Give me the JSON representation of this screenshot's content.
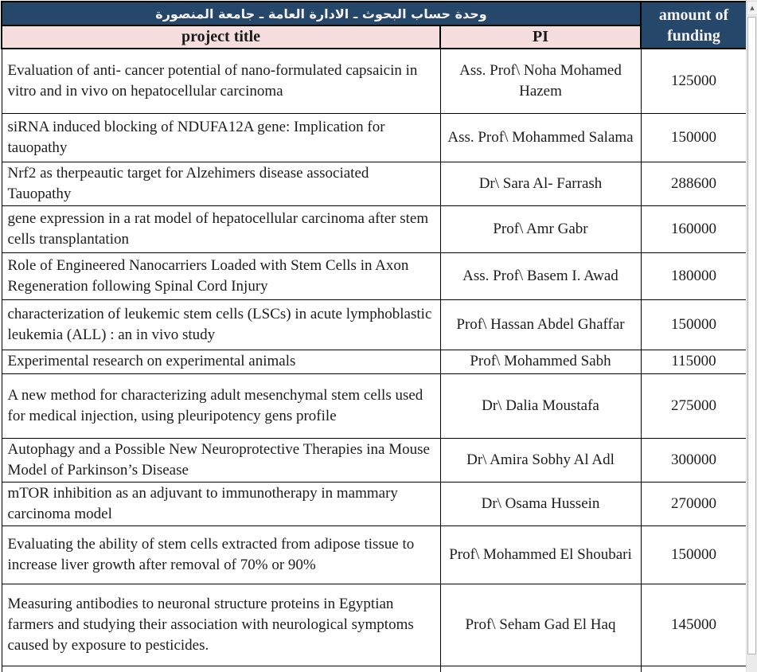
{
  "header": {
    "title_ar": "وحدة حساب البحوث ـ الادارة العامة ـ جامعة المنصورة",
    "project_title_label": "project title",
    "pi_label": "PI",
    "amount_label": "amount of funding"
  },
  "table": {
    "rows": [
      {
        "title": "Evaluation of anti- cancer potential of nano-formulated capsaicin in vitro and in vivo on hepatocellular carcinoma",
        "pi": "Ass. Prof\\ Noha Mohamed Hazem",
        "amount": "125000"
      },
      {
        "title": "siRNA induced blocking of NDUFA12A gene: Implication for tauopathy",
        "pi": "Ass. Prof\\ Mohammed Salama",
        "amount": "150000"
      },
      {
        "title": "Nrf2 as therpeautic target for Alzehimers disease associated Tauopathy",
        "pi": "Dr\\ Sara Al- Farrash",
        "amount": "288600"
      },
      {
        "title": "gene expression in a rat model of hepatocellular carcinoma after stem cells transplantation",
        "pi": "Prof\\ Amr Gabr",
        "amount": "160000"
      },
      {
        "title": "Role of Engineered Nanocarriers Loaded with Stem Cells in Axon Regeneration following Spinal Cord Injury",
        "pi": "Ass. Prof\\ Basem I. Awad",
        "amount": "180000"
      },
      {
        "title": "characterization of leukemic stem cells (LSCs) in acute lymphoblastic leukemia (ALL) : an in vivo study",
        "pi": "Prof\\ Hassan Abdel Ghaffar",
        "amount": "150000"
      },
      {
        "title": "Experimental research on experimental animals",
        "pi": "Prof\\ Mohammed Sabh",
        "amount": "115000"
      },
      {
        "title": "A new method for characterizing adult mesenchymal stem cells used for medical injection, using pleuripotency gens profile",
        "pi": "Dr\\ Dalia Moustafa",
        "amount": "275000"
      },
      {
        "title": "Autophagy and a Possible New Neuroprotective Therapies ina Mouse Model of Parkinson’s Disease",
        "pi": "Dr\\ Amira Sobhy Al Adl",
        "amount": "300000"
      },
      {
        "title": "mTOR inhibition as an adjuvant to immunotherapy in mammary carcinoma model",
        "pi": "Dr\\ Osama Hussein",
        "amount": "270000"
      },
      {
        "title": "Evaluating the ability of stem cells extracted from adipose tissue to increase liver growth after removal of 70% or 90%",
        "pi": "Prof\\ Mohammed El Shoubari",
        "amount": "150000"
      },
      {
        "title": "Measuring antibodies to neuronal structure proteins in Egyptian farmers and studying their association with neurological symptoms caused by exposure to pesticides.",
        "pi": "Prof\\ Seham Gad El Haq",
        "amount": "145000"
      }
    ]
  },
  "scrollbar": {
    "up_arrow": "▲"
  },
  "colors": {
    "header_navy": "#254769",
    "header_pink": "#f5dedd"
  }
}
